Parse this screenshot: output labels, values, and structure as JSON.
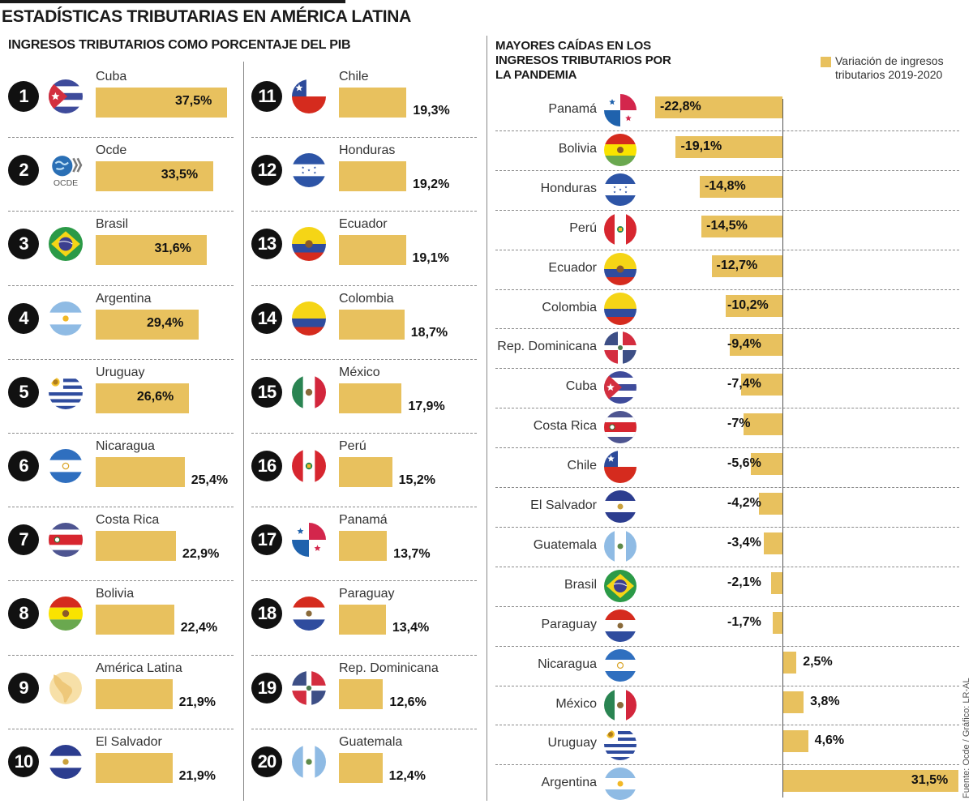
{
  "header": {
    "title": "ESTADÍSTICAS TRIBUTARIAS EN AMÉRICA LATINA",
    "left_subtitle": "INGRESOS TRIBUTARIOS COMO PORCENTAJE DEL PIB",
    "right_subtitle_lines": [
      "MAYORES CAÍDAS EN LOS",
      "INGRESOS TRIBUTARIOS POR",
      "LA PANDEMIA"
    ]
  },
  "legend": {
    "label_lines": [
      "Variación de ingresos",
      "tributarios 2019-2020"
    ],
    "color": "#E8C15E"
  },
  "source": "Fuente: Ocde / Gráfico: LR-AL",
  "colors": {
    "bar": "#E8C15E",
    "text": "#1a1a1a",
    "badge": "#111111"
  },
  "chart_data": [
    {
      "type": "bar",
      "orientation": "horizontal",
      "title": "INGRESOS TRIBUTARIOS COMO PORCENTAJE DEL PIB",
      "unit": "% del PIB",
      "xlim": [
        0,
        40
      ],
      "grid": false,
      "items": [
        {
          "rank": "1",
          "name": "Cuba",
          "flag": "cuba",
          "value": 37.5,
          "label": "37,5%"
        },
        {
          "rank": "2",
          "name": "Ocde",
          "flag": "ocde",
          "value": 33.5,
          "label": "33,5%"
        },
        {
          "rank": "3",
          "name": "Brasil",
          "flag": "brasil",
          "value": 31.6,
          "label": "31,6%"
        },
        {
          "rank": "4",
          "name": "Argentina",
          "flag": "argentina",
          "value": 29.4,
          "label": "29,4%"
        },
        {
          "rank": "5",
          "name": "Uruguay",
          "flag": "uruguay",
          "value": 26.6,
          "label": "26,6%"
        },
        {
          "rank": "6",
          "name": "Nicaragua",
          "flag": "nicaragua",
          "value": 25.4,
          "label": "25,4%"
        },
        {
          "rank": "7",
          "name": "Costa Rica",
          "flag": "costarica",
          "value": 22.9,
          "label": "22,9%"
        },
        {
          "rank": "8",
          "name": "Bolivia",
          "flag": "bolivia",
          "value": 22.4,
          "label": "22,4%"
        },
        {
          "rank": "9",
          "name": "América Latina",
          "flag": "latam",
          "value": 21.9,
          "label": "21,9%"
        },
        {
          "rank": "10",
          "name": "El Salvador",
          "flag": "elsalvador",
          "value": 21.9,
          "label": "21,9%"
        },
        {
          "rank": "11",
          "name": "Chile",
          "flag": "chile",
          "value": 19.3,
          "label": "19,3%"
        },
        {
          "rank": "12",
          "name": "Honduras",
          "flag": "honduras",
          "value": 19.2,
          "label": "19,2%"
        },
        {
          "rank": "13",
          "name": "Ecuador",
          "flag": "ecuador",
          "value": 19.1,
          "label": "19,1%"
        },
        {
          "rank": "14",
          "name": "Colombia",
          "flag": "colombia",
          "value": 18.7,
          "label": "18,7%"
        },
        {
          "rank": "15",
          "name": "México",
          "flag": "mexico",
          "value": 17.9,
          "label": "17,9%"
        },
        {
          "rank": "16",
          "name": "Perú",
          "flag": "peru",
          "value": 15.2,
          "label": "15,2%"
        },
        {
          "rank": "17",
          "name": "Panamá",
          "flag": "panama",
          "value": 13.7,
          "label": "13,7%"
        },
        {
          "rank": "18",
          "name": "Paraguay",
          "flag": "paraguay",
          "value": 13.4,
          "label": "13,4%"
        },
        {
          "rank": "19",
          "name": "Rep. Dominicana",
          "flag": "repdom",
          "value": 12.6,
          "label": "12,6%"
        },
        {
          "rank": "20",
          "name": "Guatemala",
          "flag": "guatemala",
          "value": 12.4,
          "label": "12,4%"
        }
      ]
    },
    {
      "type": "bar",
      "orientation": "horizontal-diverging",
      "title": "MAYORES CAÍDAS EN LOS INGRESOS TRIBUTARIOS POR LA PANDEMIA",
      "legend": "Variación de ingresos tributarios 2019-2020",
      "unit": "%",
      "xlim": [
        -25,
        32
      ],
      "grid": false,
      "items": [
        {
          "name": "Panamá",
          "flag": "panama",
          "value": -22.8,
          "label": "-22,8%"
        },
        {
          "name": "Bolivia",
          "flag": "bolivia",
          "value": -19.1,
          "label": "-19,1%"
        },
        {
          "name": "Honduras",
          "flag": "honduras",
          "value": -14.8,
          "label": "-14,8%"
        },
        {
          "name": "Perú",
          "flag": "peru",
          "value": -14.5,
          "label": "-14,5%"
        },
        {
          "name": "Ecuador",
          "flag": "ecuador",
          "value": -12.7,
          "label": "-12,7%"
        },
        {
          "name": "Colombia",
          "flag": "colombia",
          "value": -10.2,
          "label": "-10,2%"
        },
        {
          "name": "Rep. Dominicana",
          "flag": "repdom",
          "value": -9.4,
          "label": "-9,4%"
        },
        {
          "name": "Cuba",
          "flag": "cuba",
          "value": -7.4,
          "label": "-7,4%"
        },
        {
          "name": "Costa Rica",
          "flag": "costarica",
          "value": -7.0,
          "label": "-7%"
        },
        {
          "name": "Chile",
          "flag": "chile",
          "value": -5.6,
          "label": "-5,6%"
        },
        {
          "name": "El Salvador",
          "flag": "elsalvador",
          "value": -4.2,
          "label": "-4,2%"
        },
        {
          "name": "Guatemala",
          "flag": "guatemala",
          "value": -3.4,
          "label": "-3,4%"
        },
        {
          "name": "Brasil",
          "flag": "brasil",
          "value": -2.1,
          "label": "-2,1%"
        },
        {
          "name": "Paraguay",
          "flag": "paraguay",
          "value": -1.7,
          "label": "-1,7%"
        },
        {
          "name": "Nicaragua",
          "flag": "nicaragua",
          "value": 2.5,
          "label": "2,5%"
        },
        {
          "name": "México",
          "flag": "mexico",
          "value": 3.8,
          "label": "3,8%"
        },
        {
          "name": "Uruguay",
          "flag": "uruguay",
          "value": 4.6,
          "label": "4,6%"
        },
        {
          "name": "Argentina",
          "flag": "argentina",
          "value": 31.5,
          "label": "31,5%"
        }
      ]
    }
  ]
}
